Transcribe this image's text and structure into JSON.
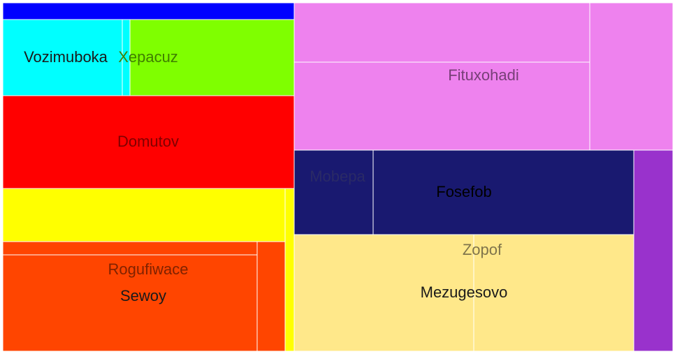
{
  "chart_data": {
    "type": "treemap",
    "title": "",
    "items": [
      {
        "name": "Vozimuboka",
        "parent": "",
        "color": "#00ffff",
        "value": 214
      },
      {
        "name": "Xepacuz",
        "parent": "",
        "color": "#7fff00",
        "value": 303
      },
      {
        "name": "Domutov",
        "parent": "",
        "color": "#ff0000",
        "value": 553
      },
      {
        "name": "Rogufiwace",
        "parent": "",
        "color": "#ff4500",
        "value": 65
      },
      {
        "name": "Sewoy",
        "parent": "",
        "color": "#ff4500",
        "value": 476
      },
      {
        "name": "Fituxohadi",
        "parent": "",
        "color": "#ee82ee",
        "value": 1060
      },
      {
        "name": "Mobepa",
        "parent": "",
        "color": "#191970",
        "value": 134
      },
      {
        "name": "Fosefob",
        "parent": "",
        "color": "#191970",
        "value": 441
      },
      {
        "name": "Zopof",
        "parent": "",
        "color": "#ffe88a",
        "value": 0
      },
      {
        "name": "Mezugesovo",
        "parent": "",
        "color": "#ffe88a",
        "value": 720
      }
    ]
  }
}
